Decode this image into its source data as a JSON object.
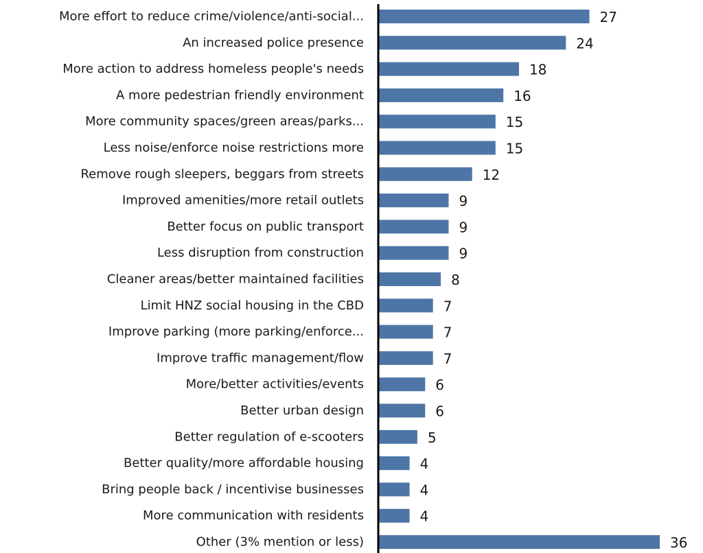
{
  "chart_data": {
    "type": "bar",
    "orientation": "horizontal",
    "title": "",
    "xlabel": "",
    "ylabel": "",
    "bar_color": "#4d76a6",
    "axis_color": "#000000",
    "xlim": [
      0,
      36
    ],
    "grid": false,
    "categories": [
      "More effort to reduce crime/violence/anti-social...",
      "An increased police presence",
      "More action to address homeless people's needs",
      "A more pedestrian friendly environment",
      "More community spaces/green areas/parks...",
      "Less noise/enforce noise restrictions more",
      "Remove rough sleepers, beggars from streets",
      "Improved amenities/more retail outlets",
      "Better focus on public transport",
      "Less disruption from construction",
      "Cleaner areas/better maintained facilities",
      "Limit HNZ social housing in the CBD",
      "Improve parking (more parking/enforce...",
      "Improve traffic management/flow",
      "More/better activities/events",
      "Better urban design",
      "Better regulation of e-scooters",
      "Better quality/more affordable housing",
      "Bring people back / incentivise businesses",
      "More communication with residents",
      "Other (3% mention or less)"
    ],
    "values": [
      27,
      24,
      18,
      16,
      15,
      15,
      12,
      9,
      9,
      9,
      8,
      7,
      7,
      7,
      6,
      6,
      5,
      4,
      4,
      4,
      36
    ],
    "value_labels": [
      "27",
      "24",
      "18",
      "16",
      "15",
      "15",
      "12",
      "9",
      "9",
      "9",
      "8",
      "7",
      "7",
      "7",
      "6",
      "6",
      "5",
      "4",
      "4",
      "4",
      "36"
    ]
  }
}
